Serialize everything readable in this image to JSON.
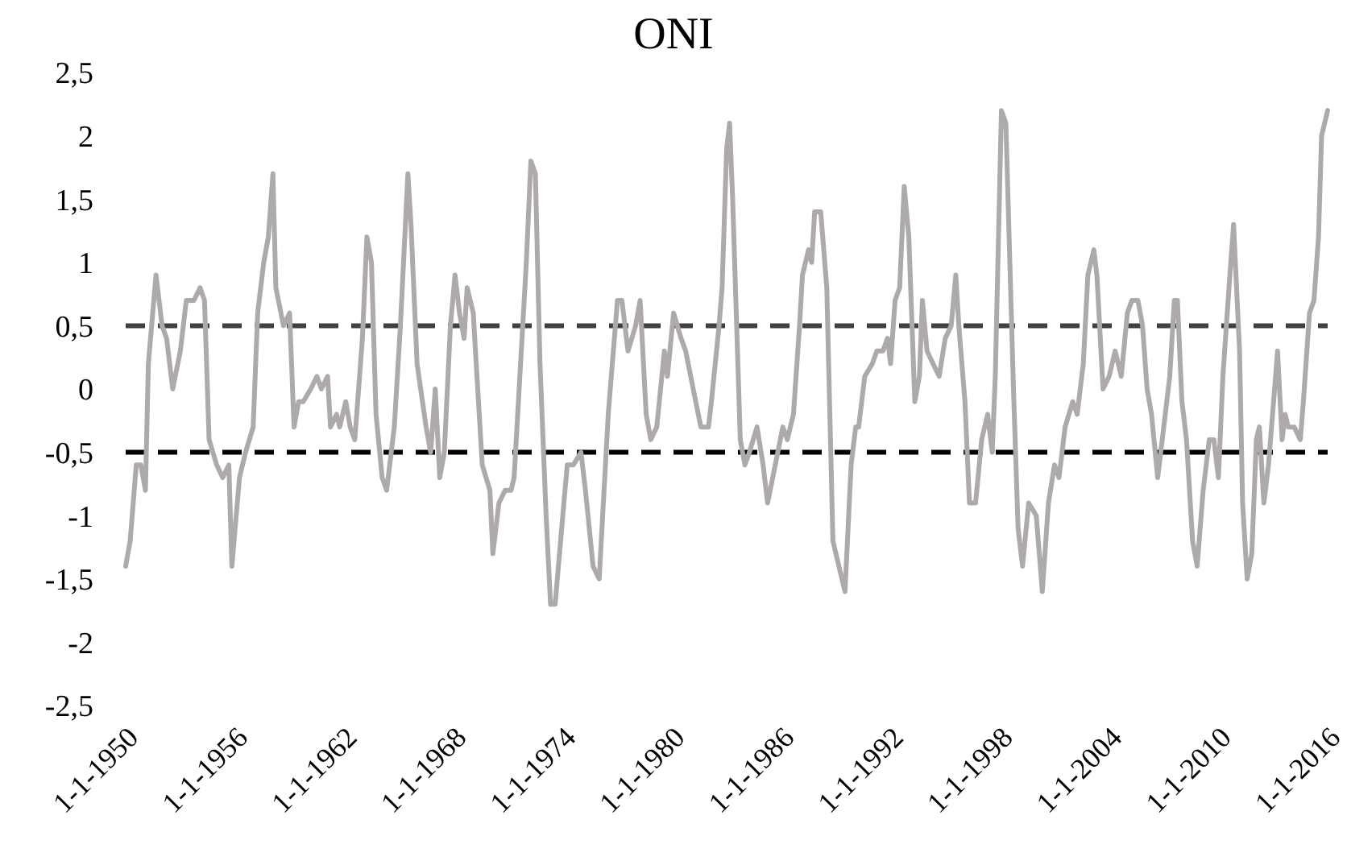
{
  "chart_data": {
    "type": "line",
    "title": "ONI",
    "x": [
      "1950-01",
      "1950-04",
      "1950-08",
      "1950-11",
      "1951-02",
      "1951-04",
      "1951-09",
      "1952-01",
      "1952-04",
      "1952-08",
      "1953-01",
      "1953-05",
      "1953-10",
      "1954-02",
      "1954-05",
      "1954-08",
      "1955-01",
      "1955-05",
      "1955-09",
      "1955-11",
      "1956-04",
      "1956-08",
      "1957-01",
      "1957-04",
      "1957-08",
      "1957-11",
      "1958-02",
      "1958-04",
      "1958-09",
      "1959-01",
      "1959-04",
      "1959-07",
      "1959-10",
      "1960-03",
      "1960-07",
      "1960-10",
      "1961-02",
      "1961-04",
      "1961-08",
      "1961-10",
      "1962-02",
      "1962-05",
      "1962-08",
      "1963-01",
      "1963-04",
      "1963-07",
      "1963-10",
      "1964-02",
      "1964-05",
      "1964-10",
      "1965-02",
      "1965-07",
      "1965-09",
      "1966-01",
      "1966-07",
      "1966-10",
      "1967-01",
      "1967-04",
      "1967-07",
      "1967-11",
      "1968-02",
      "1968-05",
      "1968-08",
      "1968-10",
      "1969-02",
      "1969-04",
      "1969-08",
      "1970-01",
      "1970-03",
      "1970-07",
      "1970-11",
      "1971-03",
      "1971-05",
      "1972-01",
      "1972-04",
      "1972-07",
      "1972-10",
      "1973-02",
      "1973-05",
      "1973-08",
      "1974-01",
      "1974-04",
      "1974-08",
      "1975-01",
      "1975-04",
      "1975-09",
      "1976-01",
      "1976-07",
      "1977-01",
      "1977-04",
      "1977-08",
      "1978-01",
      "1978-04",
      "1978-08",
      "1978-11",
      "1979-03",
      "1979-08",
      "1979-10",
      "1980-02",
      "1980-07",
      "1980-10",
      "1981-03",
      "1981-08",
      "1982-01",
      "1982-03",
      "1982-08",
      "1982-10",
      "1983-01",
      "1983-03",
      "1983-05",
      "1983-10",
      "1984-01",
      "1984-04",
      "1984-09",
      "1985-01",
      "1985-04",
      "1985-09",
      "1986-02",
      "1986-05",
      "1986-09",
      "1987-01",
      "1987-03",
      "1987-07",
      "1987-09",
      "1987-11",
      "1988-03",
      "1988-07",
      "1988-11",
      "1989-03",
      "1989-07",
      "1989-11",
      "1990-02",
      "1990-04",
      "1990-08",
      "1991-01",
      "1991-04",
      "1991-08",
      "1991-11",
      "1992-01",
      "1992-04",
      "1992-07",
      "1992-10",
      "1993-01",
      "1993-05",
      "1993-08",
      "1993-10",
      "1994-01",
      "1994-05",
      "1994-09",
      "1995-01",
      "1995-05",
      "1995-08",
      "1995-10",
      "1996-02",
      "1996-05",
      "1996-09",
      "1997-01",
      "1997-05",
      "1997-08",
      "1997-10",
      "1998-02",
      "1998-05",
      "1998-10",
      "1999-01",
      "1999-04",
      "1999-08",
      "2000-01",
      "2000-05",
      "2000-09",
      "2001-01",
      "2001-04",
      "2001-08",
      "2002-01",
      "2002-04",
      "2002-08",
      "2002-11",
      "2003-03",
      "2003-05",
      "2003-09",
      "2004-01",
      "2004-05",
      "2004-09",
      "2005-01",
      "2005-04",
      "2005-08",
      "2005-11",
      "2006-02",
      "2006-05",
      "2006-09",
      "2007-01",
      "2007-05",
      "2007-08",
      "2007-10",
      "2008-01",
      "2008-04",
      "2008-08",
      "2008-11",
      "2009-03",
      "2009-07",
      "2009-10",
      "2010-01",
      "2010-04",
      "2010-08",
      "2010-11",
      "2011-03",
      "2011-05",
      "2011-08",
      "2011-11",
      "2012-02",
      "2012-04",
      "2012-07",
      "2012-10",
      "2013-02",
      "2013-04",
      "2013-07",
      "2013-09",
      "2013-11",
      "2014-03",
      "2014-07",
      "2014-09",
      "2015-01",
      "2015-04",
      "2015-07",
      "2015-09",
      "2016-01"
    ],
    "series": [
      {
        "color": "#aeaaaa",
        "values": [
          -1.4,
          -1.2,
          -0.6,
          -0.6,
          -0.8,
          0.2,
          0.9,
          0.5,
          0.4,
          0.0,
          0.3,
          0.7,
          0.7,
          0.8,
          0.7,
          -0.4,
          -0.6,
          -0.7,
          -0.6,
          -1.4,
          -0.7,
          -0.5,
          -0.3,
          0.6,
          1.0,
          1.2,
          1.7,
          0.8,
          0.5,
          0.6,
          -0.3,
          -0.1,
          -0.1,
          0.0,
          0.1,
          0.0,
          0.1,
          -0.3,
          -0.2,
          -0.3,
          -0.1,
          -0.3,
          -0.4,
          0.4,
          1.2,
          1.0,
          -0.2,
          -0.7,
          -0.8,
          -0.3,
          0.5,
          1.7,
          1.3,
          0.2,
          -0.3,
          -0.5,
          0.0,
          -0.7,
          -0.5,
          0.5,
          0.9,
          0.6,
          0.4,
          0.8,
          0.6,
          0.2,
          -0.6,
          -0.8,
          -1.3,
          -0.9,
          -0.8,
          -0.8,
          -0.7,
          1.0,
          1.8,
          1.7,
          0.2,
          -1.0,
          -1.7,
          -1.7,
          -1.0,
          -0.6,
          -0.6,
          -0.5,
          -0.8,
          -1.4,
          -1.5,
          -0.2,
          0.7,
          0.7,
          0.3,
          0.5,
          0.7,
          -0.2,
          -0.4,
          -0.3,
          0.3,
          0.1,
          0.6,
          0.4,
          0.3,
          0.0,
          -0.3,
          -0.3,
          -0.1,
          0.5,
          0.8,
          1.9,
          2.1,
          1.5,
          -0.4,
          -0.6,
          -0.5,
          -0.3,
          -0.6,
          -0.9,
          -0.6,
          -0.3,
          -0.4,
          -0.2,
          0.5,
          0.9,
          1.1,
          1.0,
          1.4,
          1.4,
          0.8,
          -1.2,
          -1.4,
          -1.6,
          -0.6,
          -0.3,
          -0.3,
          0.1,
          0.2,
          0.3,
          0.3,
          0.4,
          0.2,
          0.7,
          0.8,
          1.6,
          1.2,
          -0.1,
          0.1,
          0.7,
          0.3,
          0.2,
          0.1,
          0.4,
          0.5,
          0.9,
          0.5,
          -0.1,
          -0.9,
          -0.9,
          -0.4,
          -0.2,
          -0.5,
          0.1,
          2.2,
          2.1,
          0.0,
          -1.1,
          -1.4,
          -0.9,
          -1.0,
          -1.6,
          -0.9,
          -0.6,
          -0.7,
          -0.3,
          -0.1,
          -0.2,
          0.2,
          0.9,
          1.1,
          0.9,
          0.0,
          0.1,
          0.3,
          0.1,
          0.6,
          0.7,
          0.7,
          0.5,
          0.0,
          -0.2,
          -0.7,
          -0.3,
          0.1,
          0.7,
          0.7,
          -0.1,
          -0.4,
          -1.2,
          -1.4,
          -0.8,
          -0.4,
          -0.4,
          -0.7,
          0.1,
          0.8,
          1.3,
          0.3,
          -0.9,
          -1.5,
          -1.3,
          -0.4,
          -0.3,
          -0.9,
          -0.6,
          0.0,
          0.3,
          -0.4,
          -0.2,
          -0.3,
          -0.3,
          -0.4,
          -0.1,
          0.6,
          0.7,
          1.2,
          2.0,
          2.2
        ]
      }
    ],
    "xlim": [
      "1950-01-01",
      "2016-01-01"
    ],
    "xticks": [
      {
        "value": "1950-01-01",
        "label": "1-1-1950"
      },
      {
        "value": "1956-01-01",
        "label": "1-1-1956"
      },
      {
        "value": "1962-01-01",
        "label": "1-1-1962"
      },
      {
        "value": "1968-01-01",
        "label": "1-1-1968"
      },
      {
        "value": "1974-01-01",
        "label": "1-1-1974"
      },
      {
        "value": "1980-01-01",
        "label": "1-1-1980"
      },
      {
        "value": "1986-01-01",
        "label": "1-1-1986"
      },
      {
        "value": "1992-01-01",
        "label": "1-1-1992"
      },
      {
        "value": "1998-01-01",
        "label": "1-1-1998"
      },
      {
        "value": "2004-01-01",
        "label": "1-1-2004"
      },
      {
        "value": "2010-01-01",
        "label": "1-1-2010"
      },
      {
        "value": "2016-01-01",
        "label": "1-1-2016"
      }
    ],
    "ylim": [
      -2.5,
      2.5
    ],
    "yticks": [
      {
        "value": -2.5,
        "label": "-2,5"
      },
      -2,
      {
        "value": -1.5,
        "label": "-1,5"
      },
      -1,
      {
        "value": -0.5,
        "label": "-0,5"
      },
      0,
      {
        "value": 0.5,
        "label": "0,5"
      },
      1,
      {
        "value": 1.5,
        "label": "1,5"
      },
      2,
      {
        "value": 2.5,
        "label": "2,5"
      }
    ],
    "ref_lines": [
      {
        "axis": "y",
        "value": 0.5,
        "color": "#404040",
        "line_style": "dashed"
      },
      {
        "axis": "y",
        "value": -0.5,
        "color": "#000000",
        "line_style": "dashed"
      }
    ],
    "line_style": "solid",
    "marker": "none"
  }
}
